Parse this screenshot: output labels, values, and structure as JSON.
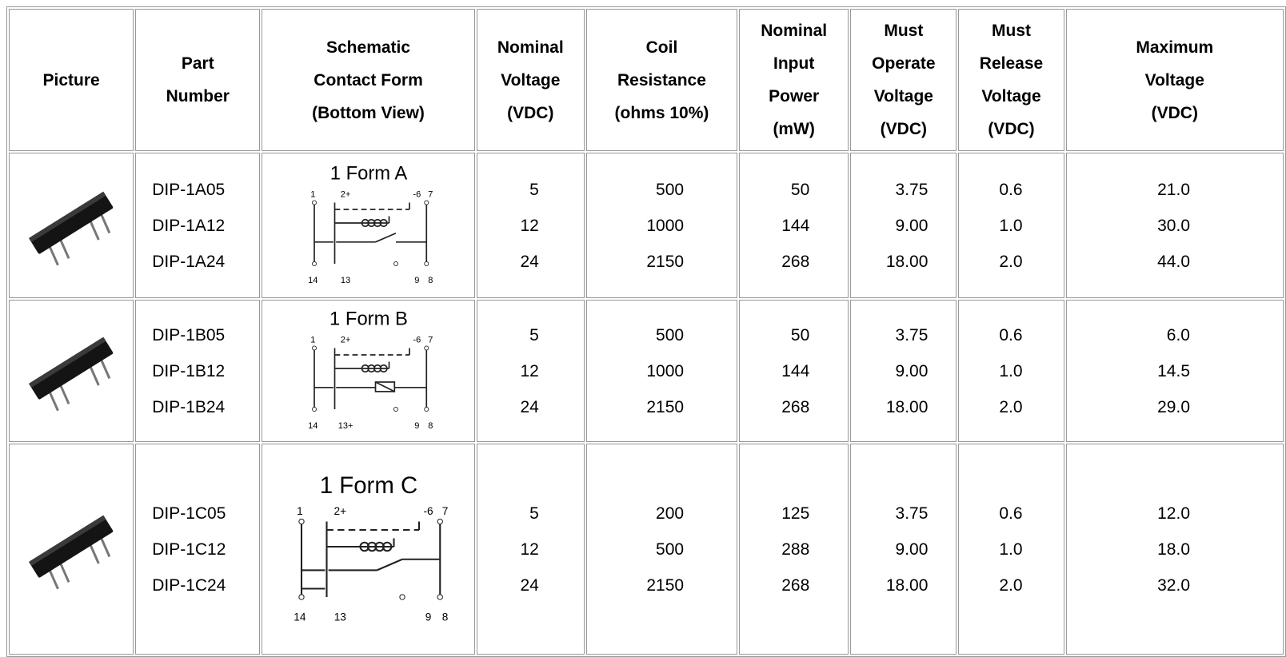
{
  "table": {
    "headers": [
      [
        "Picture"
      ],
      [
        "Part",
        "Number"
      ],
      [
        "Schematic",
        "Contact Form",
        "(Bottom View)"
      ],
      [
        "Nominal",
        "Voltage",
        "(VDC)"
      ],
      [
        "Coil",
        "Resistance",
        "(ohms 10%)"
      ],
      [
        "Nominal",
        "Input",
        "Power",
        "(mW)"
      ],
      [
        "Must",
        "Operate",
        "Voltage",
        "(VDC)"
      ],
      [
        "Must",
        "Release",
        "Voltage",
        "(VDC)"
      ],
      [
        "Maximum",
        "Voltage",
        "(VDC)"
      ]
    ],
    "rows": [
      {
        "parts": [
          "DIP-1A05",
          "DIP-1A12",
          "DIP-1A24"
        ],
        "schematic": {
          "form": "1 Form A",
          "pins": [
            "1",
            "2+",
            "-6",
            "7",
            "14",
            "13",
            "9",
            "8"
          ]
        },
        "nominal_voltage": [
          "5",
          "12",
          "24"
        ],
        "coil_resistance": [
          "500",
          "1000",
          "2150"
        ],
        "input_power": [
          "50",
          "144",
          "268"
        ],
        "must_operate": [
          "3.75",
          "9.00",
          "18.00"
        ],
        "must_release": [
          "0.6",
          "1.0",
          "2.0"
        ],
        "maximum_voltage": [
          "21.0",
          "30.0",
          "44.0"
        ]
      },
      {
        "parts": [
          "DIP-1B05",
          "DIP-1B12",
          "DIP-1B24"
        ],
        "schematic": {
          "form": "1 Form B",
          "pins": [
            "1",
            "2+",
            "-6",
            "7",
            "14",
            "13+",
            "9",
            "8"
          ]
        },
        "nominal_voltage": [
          "5",
          "12",
          "24"
        ],
        "coil_resistance": [
          "500",
          "1000",
          "2150"
        ],
        "input_power": [
          "50",
          "144",
          "268"
        ],
        "must_operate": [
          "3.75",
          "9.00",
          "18.00"
        ],
        "must_release": [
          "0.6",
          "1.0",
          "2.0"
        ],
        "maximum_voltage": [
          "6.0",
          "14.5",
          "29.0"
        ]
      },
      {
        "parts": [
          "DIP-1C05",
          "DIP-1C12",
          "DIP-1C24"
        ],
        "schematic": {
          "form": "1 Form C",
          "pins": [
            "1",
            "2+",
            "-6",
            "7",
            "14",
            "13",
            "9",
            "8"
          ]
        },
        "nominal_voltage": [
          "5",
          "12",
          "24"
        ],
        "coil_resistance": [
          "200",
          "500",
          "2150"
        ],
        "input_power": [
          "125",
          "288",
          "268"
        ],
        "must_operate": [
          "3.75",
          "9.00",
          "18.00"
        ],
        "must_release": [
          "0.6",
          "1.0",
          "2.0"
        ],
        "maximum_voltage": [
          "12.0",
          "18.0",
          "32.0"
        ]
      }
    ]
  }
}
